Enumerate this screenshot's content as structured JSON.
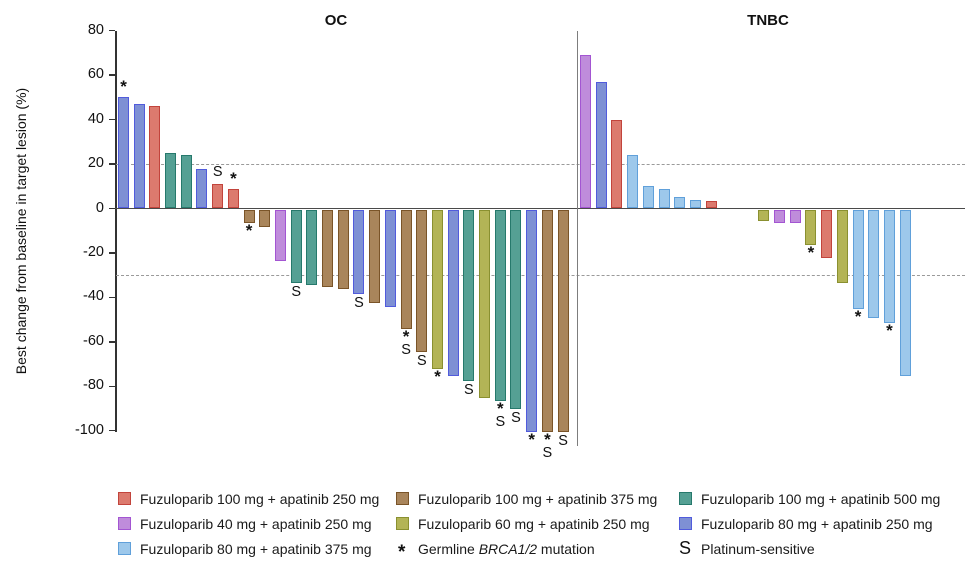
{
  "chart_data": {
    "type": "bar",
    "kind": "waterfall",
    "ylabel": "Best change from baseline in target lesion (%)",
    "ylim": [
      -100,
      80
    ],
    "yticks": [
      80,
      60,
      40,
      20,
      0,
      -20,
      -40,
      -60,
      -80,
      -100
    ],
    "reference_lines": [
      20,
      -30
    ],
    "grid": "off",
    "flag_meanings": {
      "*": "Germline BRCA1/2 mutation",
      "S": "Platinum-sensitive"
    },
    "groups": {
      "f100a250": {
        "label": "Fuzuloparib 100 mg + apatinib 250 mg",
        "fill": "#DC7A6E",
        "border": "#C2443C"
      },
      "f100a375": {
        "label": "Fuzuloparib 100 mg + apatinib 375 mg",
        "fill": "#A9855B",
        "border": "#7A5428"
      },
      "f100a500": {
        "label": "Fuzuloparib 100 mg + apatinib 500 mg",
        "fill": "#55A094",
        "border": "#26796C"
      },
      "f40a250": {
        "label": "Fuzuloparib 40 mg + apatinib 250 mg",
        "fill": "#BF8CDB",
        "border": "#A355D2"
      },
      "f60a250": {
        "label": "Fuzuloparib 60 mg + apatinib 250 mg",
        "fill": "#B3B456",
        "border": "#8A9030"
      },
      "f80a250": {
        "label": "Fuzuloparib 80 mg + apatinib 250 mg",
        "fill": "#7E90D4",
        "border": "#515BDC"
      },
      "f80a375": {
        "label": "Fuzuloparib 80 mg + apatinib 375 mg",
        "fill": "#9DC8EB",
        "border": "#60A0DA"
      }
    },
    "panels": [
      {
        "title": "OC",
        "bars": [
          {
            "value": 50,
            "group": "f80a250",
            "flags": [
              "*"
            ]
          },
          {
            "value": 47,
            "group": "f80a250",
            "flags": []
          },
          {
            "value": 46,
            "group": "f100a250",
            "flags": []
          },
          {
            "value": 25,
            "group": "f100a500",
            "flags": []
          },
          {
            "value": 24,
            "group": "f100a500",
            "flags": []
          },
          {
            "value": 18,
            "group": "f80a250",
            "flags": []
          },
          {
            "value": 11,
            "group": "f100a250",
            "flags": [
              "S"
            ]
          },
          {
            "value": 9,
            "group": "f100a250",
            "flags": [
              "*"
            ]
          },
          {
            "value": -6,
            "group": "f100a375",
            "flags": [
              "*"
            ]
          },
          {
            "value": -8,
            "group": "f100a375",
            "flags": []
          },
          {
            "value": -23,
            "group": "f40a250",
            "flags": []
          },
          {
            "value": -33,
            "group": "f100a500",
            "flags": [
              "S"
            ]
          },
          {
            "value": -34,
            "group": "f100a500",
            "flags": []
          },
          {
            "value": -35,
            "group": "f100a375",
            "flags": []
          },
          {
            "value": -36,
            "group": "f100a375",
            "flags": []
          },
          {
            "value": -38,
            "group": "f80a250",
            "flags": [
              "S"
            ]
          },
          {
            "value": -42,
            "group": "f100a375",
            "flags": []
          },
          {
            "value": -44,
            "group": "f80a250",
            "flags": []
          },
          {
            "value": -54,
            "group": "f100a375",
            "flags": [
              "*",
              "S"
            ]
          },
          {
            "value": -64,
            "group": "f100a375",
            "flags": [
              "S"
            ]
          },
          {
            "value": -72,
            "group": "f60a250",
            "flags": [
              "*"
            ]
          },
          {
            "value": -75,
            "group": "f80a250",
            "flags": []
          },
          {
            "value": -77,
            "group": "f100a500",
            "flags": [
              "S"
            ]
          },
          {
            "value": -85,
            "group": "f60a250",
            "flags": []
          },
          {
            "value": -86,
            "group": "f100a500",
            "flags": [
              "*",
              "S"
            ]
          },
          {
            "value": -90,
            "group": "f100a500",
            "flags": [
              "S"
            ]
          },
          {
            "value": -100,
            "group": "f80a250",
            "flags": [
              "*"
            ]
          },
          {
            "value": -100,
            "group": "f100a375",
            "flags": [
              "*",
              "S"
            ]
          },
          {
            "value": -100,
            "group": "f100a375",
            "flags": [
              "S"
            ]
          }
        ]
      },
      {
        "title": "TNBC",
        "bars": [
          {
            "value": 69,
            "group": "f40a250",
            "flags": []
          },
          {
            "value": 57,
            "group": "f80a250",
            "flags": []
          },
          {
            "value": 40,
            "group": "f100a250",
            "flags": []
          },
          {
            "value": 24,
            "group": "f80a375",
            "flags": []
          },
          {
            "value": 10,
            "group": "f80a375",
            "flags": []
          },
          {
            "value": 9,
            "group": "f80a375",
            "flags": []
          },
          {
            "value": 5,
            "group": "f80a375",
            "flags": []
          },
          {
            "value": 4,
            "group": "f80a375",
            "flags": []
          },
          {
            "value": 3.5,
            "group": "f100a250",
            "flags": []
          },
          {
            "value": -5,
            "group": "f60a250",
            "flags": []
          },
          {
            "value": -6,
            "group": "f40a250",
            "flags": []
          },
          {
            "value": -6,
            "group": "f40a250",
            "flags": []
          },
          {
            "value": -16,
            "group": "f60a250",
            "flags": [
              "*"
            ]
          },
          {
            "value": -22,
            "group": "f100a250",
            "flags": []
          },
          {
            "value": -33,
            "group": "f60a250",
            "flags": []
          },
          {
            "value": -45,
            "group": "f80a375",
            "flags": [
              "*"
            ]
          },
          {
            "value": -49,
            "group": "f80a375",
            "flags": []
          },
          {
            "value": -51,
            "group": "f80a375",
            "flags": [
              "*"
            ]
          },
          {
            "value": -75,
            "group": "f80a375",
            "flags": []
          }
        ]
      }
    ]
  },
  "legend": {
    "rows": [
      [
        {
          "type": "swatch",
          "group": "f100a250"
        },
        {
          "type": "swatch",
          "group": "f100a375"
        },
        {
          "type": "swatch",
          "group": "f100a500"
        }
      ],
      [
        {
          "type": "swatch",
          "group": "f40a250"
        },
        {
          "type": "swatch",
          "group": "f60a250"
        },
        {
          "type": "swatch",
          "group": "f80a250"
        }
      ],
      [
        {
          "type": "swatch",
          "group": "f80a375"
        },
        {
          "type": "marker",
          "symbol": "*",
          "label_parts": [
            "Germline ",
            "BRCA1/2",
            " mutation"
          ]
        },
        {
          "type": "marker",
          "symbol": "S",
          "label": "Platinum-sensitive"
        }
      ]
    ]
  }
}
